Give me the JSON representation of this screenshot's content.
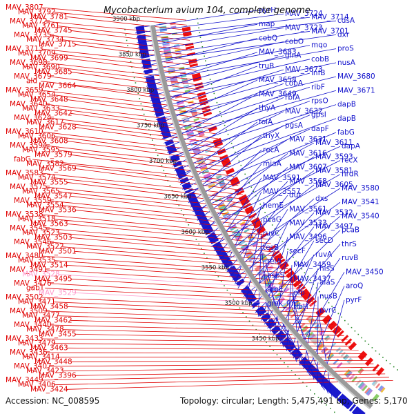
{
  "title": "Mycobacterium avium 104, complete genome",
  "footer": {
    "accession": "Accession: NC_008595",
    "summary": "Topology: circular; Length: 5,475,491 bp; Genes: 5,170"
  },
  "colors": {
    "left_labels": "#e00000",
    "left_labels_pink": "#ff99cc",
    "right_labels": "#1010cc",
    "backbone": "#9a9a9a",
    "gene_red": "#ee1111",
    "gene_blue": "#1a1acc",
    "ticks_green": "#2a8a2a"
  },
  "scale_labels": [
    "3900 kbp",
    "3850 kbp",
    "3800 kbp",
    "3750 kbp",
    "3700 kbp",
    "3650 kbp",
    "3600 kbp",
    "3550 kbp",
    "3500 kbp",
    "3450 kbp"
  ],
  "left_labels": [
    [
      "MAV_3807",
      0
    ],
    [
      "MAV_3792",
      0
    ],
    [
      "MAV_3781",
      0
    ],
    [
      "MAV_3772",
      0
    ],
    [
      "MAV_3761",
      0
    ],
    [
      "MAV_3745",
      0
    ],
    [
      "MAV_3735",
      0
    ],
    [
      "MAV_3734",
      0
    ],
    [
      "MAV_3715",
      0
    ],
    [
      "MAV_3713",
      0
    ],
    [
      "MAV_3709",
      0
    ],
    [
      "MAV_3699",
      0
    ],
    [
      "MAV_3698",
      0
    ],
    [
      "MAV_3690",
      0
    ],
    [
      "MAV_3685",
      0
    ],
    [
      "MAV_3679",
      0
    ],
    [
      "ald",
      0
    ],
    [
      "MAV_3664",
      0
    ],
    [
      "MAV_3659",
      0
    ],
    [
      "MAV_3654",
      0
    ],
    [
      "MAV_3648",
      0
    ],
    [
      "MAV_3640",
      0
    ],
    [
      "MAV_3633",
      0
    ],
    [
      "MAV_3642",
      0
    ],
    [
      "MAV_3624",
      0
    ],
    [
      "MAV_3617",
      0
    ],
    [
      "MAV_3628",
      0
    ],
    [
      "MAV_3610",
      0
    ],
    [
      "MAV_3606",
      0
    ],
    [
      "MAV_3608",
      0
    ],
    [
      "MAV_3594",
      0
    ],
    [
      "MAV_3595",
      0
    ],
    [
      "MAV_3579",
      0
    ],
    [
      "fabG",
      0
    ],
    [
      "MAV_3582",
      0
    ],
    [
      "MAV_3569",
      0
    ],
    [
      "MAV_3583",
      0
    ],
    [
      "MAV_3574",
      0
    ],
    [
      "MAV_3555",
      0
    ],
    [
      "MAV_3575",
      0
    ],
    [
      "MAV_3565",
      0
    ],
    [
      "MAV_3547",
      0
    ],
    [
      "MAV_3559",
      0
    ],
    [
      "MAV_3554",
      0
    ],
    [
      "MAV_3536",
      0
    ],
    [
      "MAV_3538",
      0
    ],
    [
      "MAV_3518",
      0
    ],
    [
      "MAV_3563",
      0
    ],
    [
      "MAV_3545",
      0
    ],
    [
      "MAV_3523",
      0
    ],
    [
      "MAV_3503",
      0
    ],
    [
      "MAV_3546",
      0
    ],
    [
      "MAV_3522",
      0
    ],
    [
      "MAV_3501",
      0
    ],
    [
      "MAV_3480",
      0
    ],
    [
      "MAV_3535",
      0
    ],
    [
      "MAV_3514",
      0
    ],
    [
      "MAV_3491",
      0
    ],
    [
      "MAV_3528",
      1
    ],
    [
      "MAV_3495",
      0
    ],
    [
      "MAV_3476",
      0
    ],
    [
      "gabT",
      0
    ],
    [
      "MAV_3529",
      1
    ],
    [
      "MAV_3502",
      0
    ],
    [
      "MAV_3471",
      0
    ],
    [
      "MAV_3458",
      0
    ],
    [
      "MAV_3509",
      0
    ],
    [
      "MAV_3477",
      0
    ],
    [
      "MAV_3462",
      0
    ],
    [
      "MAV_3440",
      0
    ],
    [
      "MAV_3478",
      0
    ],
    [
      "MAV_3455",
      0
    ],
    [
      "MAV_3433",
      0
    ],
    [
      "MAV_3479",
      0
    ],
    [
      "MAV_3463",
      0
    ],
    [
      "MAV_3436",
      0
    ],
    [
      "MAV_3414",
      0
    ],
    [
      "MAV_3448",
      0
    ],
    [
      "MAV_3407",
      0
    ],
    [
      "MAV_3423",
      0
    ],
    [
      "MAV_3396",
      0
    ],
    [
      "MAV_3449",
      0
    ],
    [
      "MAV_3406",
      0
    ],
    [
      "MAV_3424",
      0
    ]
  ],
  "right_labels": [
    "pyrH",
    "MAV_3724",
    "MAV_3714",
    "cdsA",
    "map",
    "MAV_3723",
    "MAV_3701",
    "dxr",
    "cobQ",
    "cobO",
    "mqo",
    "proS",
    "MAV_3683",
    "glnA",
    "cobB",
    "nusA",
    "truB",
    "MAV_3673",
    "infB",
    "MAV_3680",
    "MAV_3658",
    "cobA",
    "ribF",
    "MAV_3671",
    "MAV_3649",
    "rbfA",
    "rpsO",
    "dapB",
    "thyA",
    "MAV_3632",
    "gpsI",
    "dapB",
    "folA",
    "pgsA",
    "dapF",
    "fabG",
    "thyX",
    "MAV_3631",
    "MAV_3611",
    "dapA",
    "recA",
    "MAV_3616",
    "MAV_3593",
    "recX",
    "miaA",
    "MAV_3607",
    "MAV_3581",
    "nrdR",
    "MAV_3591",
    "MAV_3568",
    "MAV_3605",
    "MAV_3580",
    "MAV_3557",
    "dut",
    "dxs",
    "MAV_3541",
    "hemE",
    "MAV_3561",
    "MAV_3532",
    "MAV_3540",
    "pcaG",
    "MAV_3533",
    "MAV_3497",
    "pcaB",
    "ruvC",
    "MAV_3496",
    "secD",
    "thrS",
    "tesB",
    "secF",
    "ruvA",
    "ruvB",
    "relA",
    "MAV_3459",
    "hisS",
    "MAV_3450",
    "aspS",
    "MAV_3437",
    "alaS",
    "aroQ",
    "aroE",
    "efp",
    "nusB",
    "pyrF",
    "gmk_fmt",
    "ribH",
    "uvrC"
  ]
}
